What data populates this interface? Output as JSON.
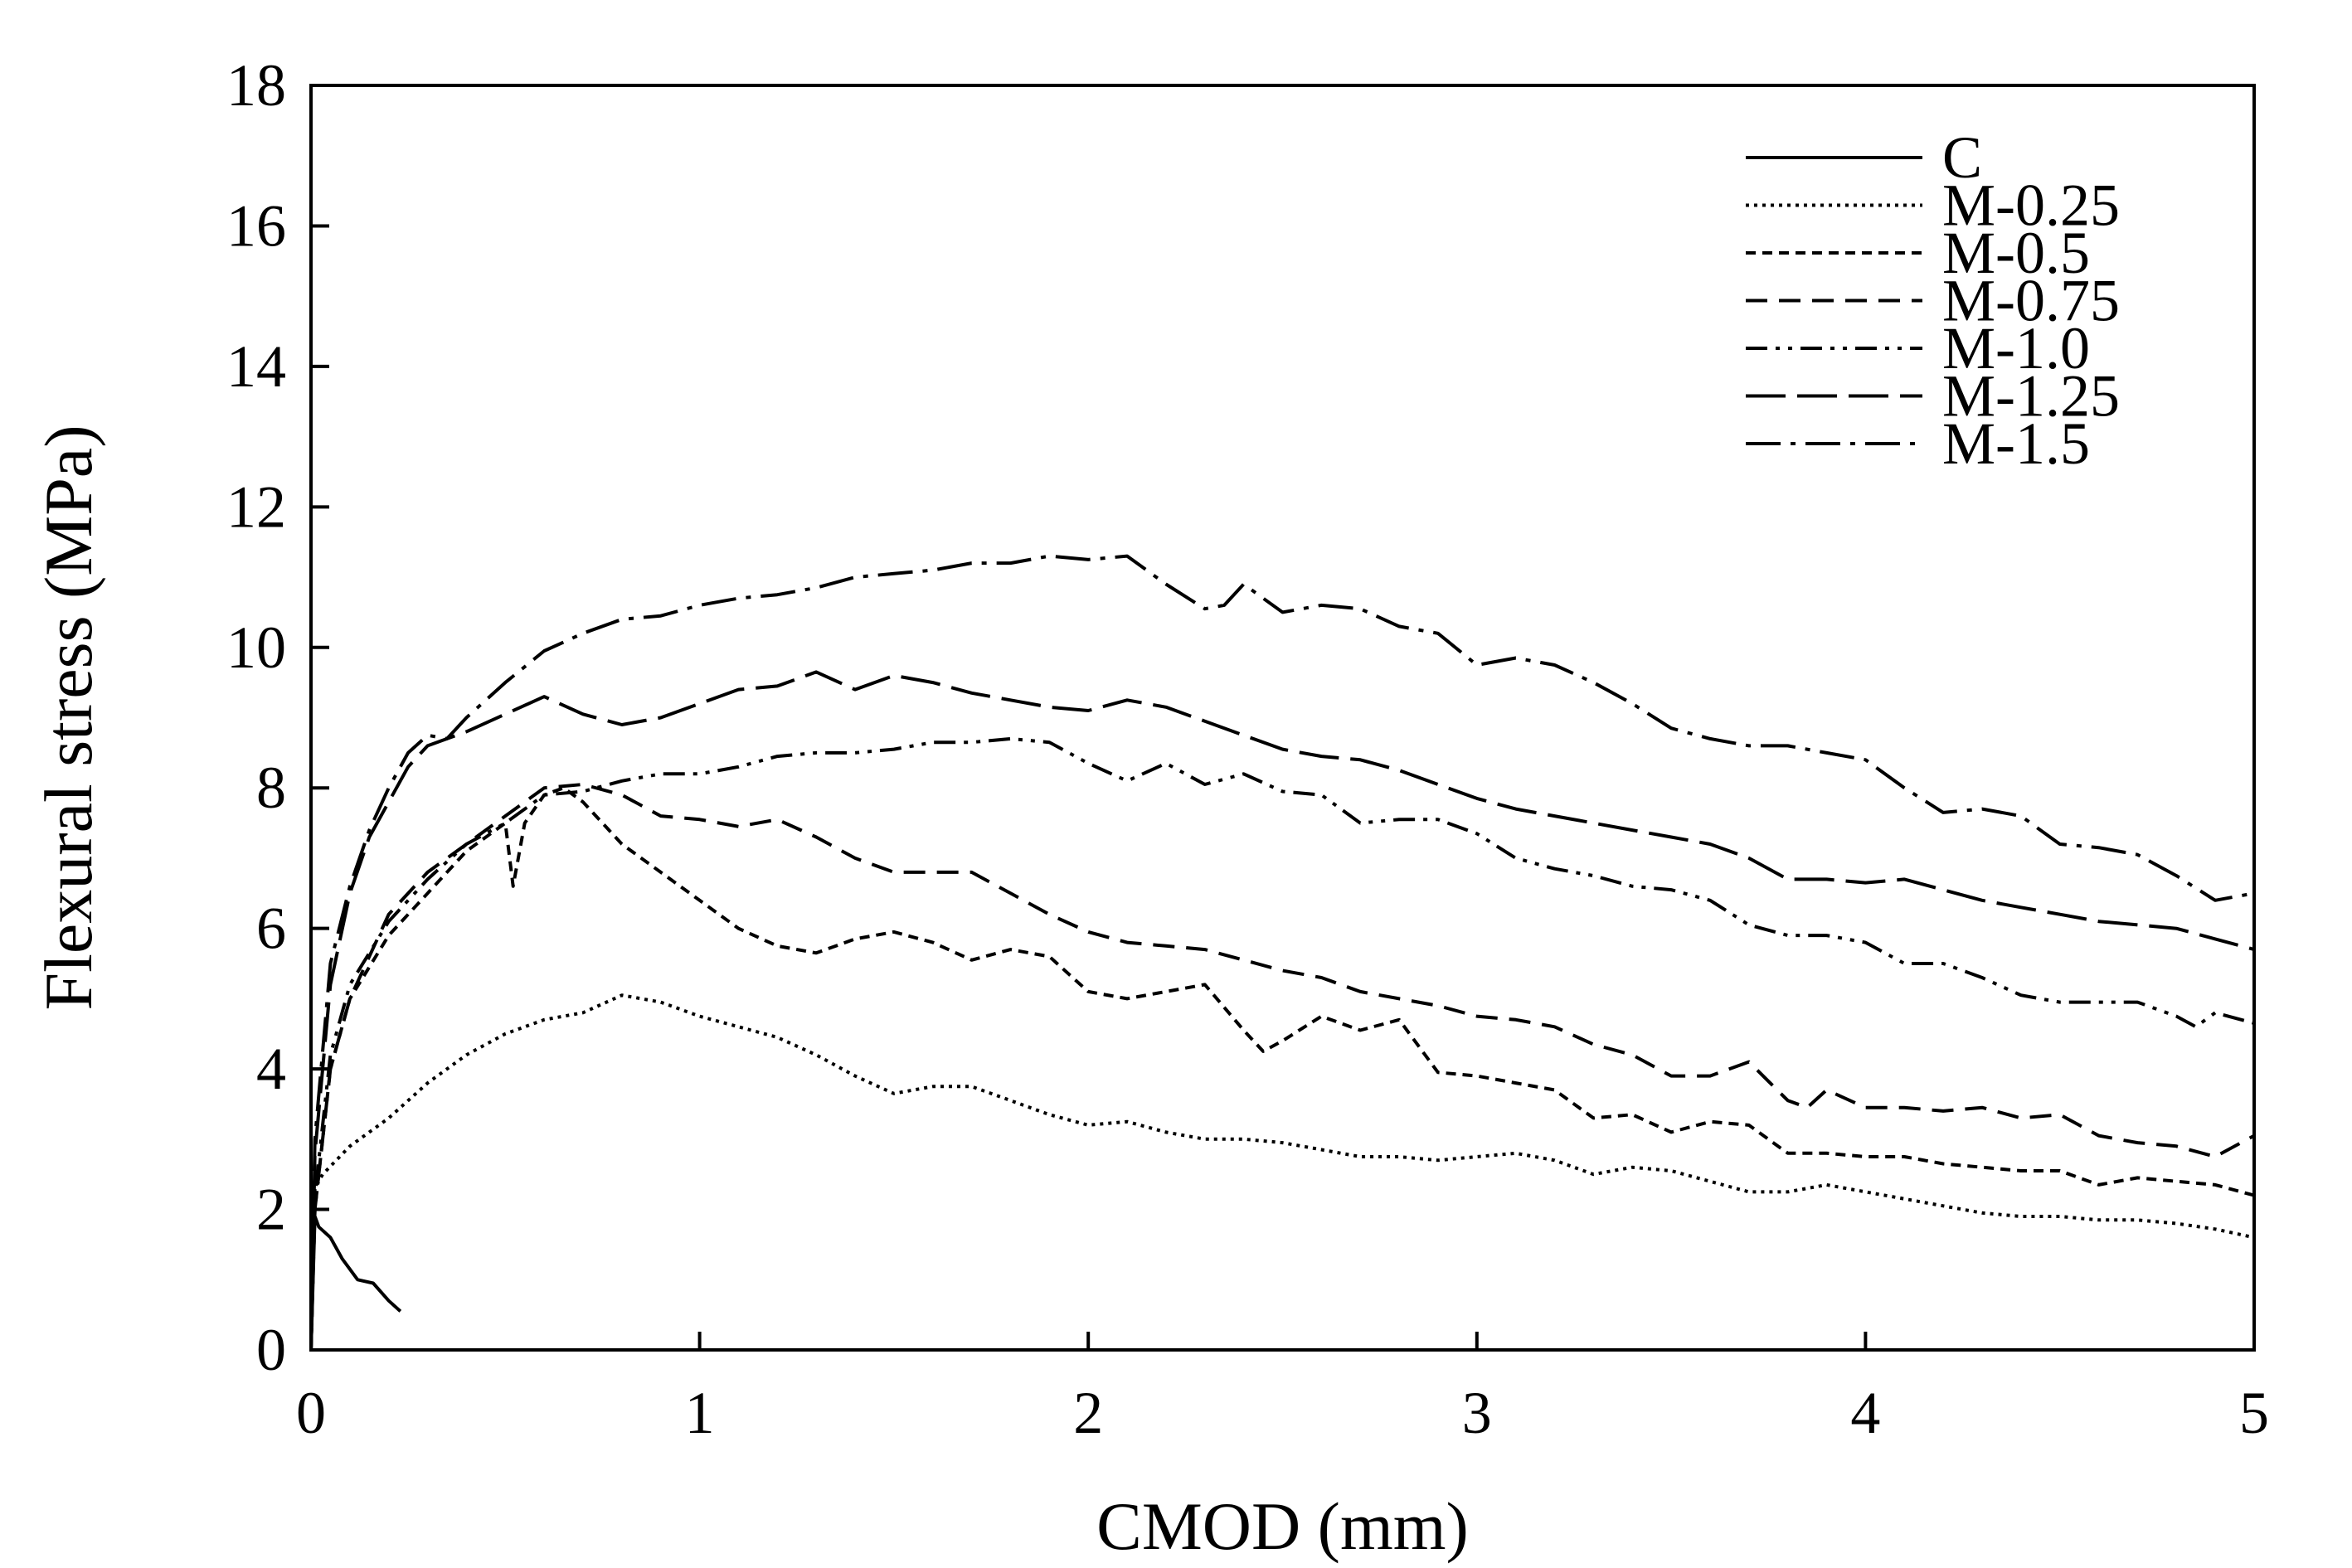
{
  "chart_data": {
    "type": "line",
    "title": "",
    "xlabel": "CMOD (mm)",
    "ylabel": "Flexural stress (MPa)",
    "xlim": [
      0,
      5
    ],
    "ylim": [
      0,
      18
    ],
    "xticks": [
      "0",
      "1",
      "2",
      "3",
      "4",
      "5"
    ],
    "yticks": [
      "0",
      "2",
      "4",
      "6",
      "8",
      "10",
      "12",
      "14",
      "16",
      "18"
    ],
    "grid": false,
    "legend_position": "top-right",
    "color": "#000000",
    "series": [
      {
        "name": "C",
        "dash": "solid",
        "x": [
          0,
          0.01,
          0.02,
          0.05,
          0.08,
          0.12,
          0.16,
          0.2,
          0.23
        ],
        "y": [
          0,
          1.9,
          1.75,
          1.6,
          1.3,
          1.0,
          0.95,
          0.7,
          0.55
        ]
      },
      {
        "name": "M-0.25",
        "dash": "dotted",
        "x": [
          0,
          0.01,
          0.03,
          0.1,
          0.2,
          0.3,
          0.4,
          0.5,
          0.6,
          0.7,
          0.8,
          0.9,
          1.0,
          1.1,
          1.2,
          1.3,
          1.4,
          1.5,
          1.6,
          1.7,
          1.8,
          1.9,
          2.0,
          2.1,
          2.2,
          2.3,
          2.4,
          2.5,
          2.6,
          2.7,
          2.8,
          2.9,
          3.0,
          3.1,
          3.2,
          3.3,
          3.4,
          3.5,
          3.6,
          3.7,
          3.8,
          3.9,
          4.0,
          4.1,
          4.2,
          4.3,
          4.4,
          4.5,
          4.6,
          4.7,
          4.8,
          4.9,
          5.0
        ],
        "y": [
          0,
          2.3,
          2.5,
          2.9,
          3.3,
          3.8,
          4.2,
          4.5,
          4.7,
          4.8,
          5.05,
          4.95,
          4.75,
          4.6,
          4.45,
          4.2,
          3.9,
          3.65,
          3.75,
          3.75,
          3.55,
          3.35,
          3.2,
          3.25,
          3.1,
          3.0,
          3.0,
          2.95,
          2.85,
          2.75,
          2.75,
          2.7,
          2.75,
          2.8,
          2.7,
          2.5,
          2.6,
          2.55,
          2.4,
          2.25,
          2.25,
          2.35,
          2.25,
          2.15,
          2.05,
          1.95,
          1.9,
          1.9,
          1.85,
          1.85,
          1.8,
          1.72,
          1.6
        ]
      },
      {
        "name": "M-0.5",
        "dash": "short-dash",
        "x": [
          0,
          0.01,
          0.05,
          0.1,
          0.2,
          0.3,
          0.4,
          0.5,
          0.52,
          0.55,
          0.6,
          0.65,
          0.7,
          0.8,
          0.9,
          1.0,
          1.1,
          1.2,
          1.3,
          1.4,
          1.5,
          1.6,
          1.7,
          1.8,
          1.9,
          2.0,
          2.1,
          2.2,
          2.3,
          2.4,
          2.45,
          2.5,
          2.6,
          2.7,
          2.8,
          2.9,
          3.0,
          3.1,
          3.2,
          3.3,
          3.4,
          3.5,
          3.6,
          3.7,
          3.8,
          3.9,
          4.0,
          4.1,
          4.2,
          4.3,
          4.4,
          4.5,
          4.6,
          4.7,
          4.8,
          4.9,
          5.0
        ],
        "y": [
          0,
          2.0,
          4.0,
          5.0,
          5.9,
          6.5,
          7.1,
          7.5,
          6.6,
          7.5,
          7.9,
          8.0,
          7.8,
          7.2,
          6.8,
          6.4,
          6.0,
          5.75,
          5.65,
          5.85,
          5.95,
          5.8,
          5.55,
          5.7,
          5.6,
          5.1,
          5.0,
          5.1,
          5.2,
          4.55,
          4.25,
          4.4,
          4.75,
          4.55,
          4.7,
          3.95,
          3.9,
          3.8,
          3.7,
          3.3,
          3.35,
          3.1,
          3.25,
          3.2,
          2.8,
          2.8,
          2.75,
          2.75,
          2.65,
          2.6,
          2.55,
          2.55,
          2.35,
          2.45,
          2.4,
          2.35,
          2.2
        ]
      },
      {
        "name": "M-0.75",
        "dash": "dash",
        "x": [
          0,
          0.01,
          0.05,
          0.1,
          0.2,
          0.3,
          0.4,
          0.5,
          0.6,
          0.7,
          0.8,
          0.9,
          1.0,
          1.1,
          1.2,
          1.3,
          1.4,
          1.5,
          1.6,
          1.7,
          1.8,
          1.9,
          2.0,
          2.1,
          2.2,
          2.3,
          2.4,
          2.5,
          2.6,
          2.7,
          2.8,
          2.9,
          3.0,
          3.1,
          3.2,
          3.3,
          3.4,
          3.5,
          3.6,
          3.7,
          3.8,
          3.85,
          3.9,
          4.0,
          4.1,
          4.2,
          4.3,
          4.4,
          4.5,
          4.6,
          4.7,
          4.8,
          4.9,
          5.0
        ],
        "y": [
          0,
          2.0,
          4.0,
          5.0,
          6.2,
          6.8,
          7.2,
          7.6,
          8.0,
          8.05,
          7.9,
          7.6,
          7.55,
          7.45,
          7.55,
          7.3,
          7.0,
          6.8,
          6.8,
          6.8,
          6.5,
          6.2,
          5.95,
          5.8,
          5.75,
          5.7,
          5.55,
          5.4,
          5.3,
          5.1,
          5.0,
          4.9,
          4.75,
          4.7,
          4.6,
          4.35,
          4.2,
          3.9,
          3.9,
          4.1,
          3.55,
          3.45,
          3.7,
          3.45,
          3.45,
          3.4,
          3.45,
          3.3,
          3.35,
          3.05,
          2.95,
          2.9,
          2.75,
          3.05
        ]
      },
      {
        "name": "M-1.0",
        "dash": "dash-dot-dot",
        "x": [
          0,
          0.01,
          0.05,
          0.1,
          0.2,
          0.3,
          0.4,
          0.5,
          0.6,
          0.7,
          0.8,
          0.9,
          1.0,
          1.1,
          1.2,
          1.3,
          1.4,
          1.5,
          1.6,
          1.7,
          1.8,
          1.9,
          2.0,
          2.1,
          2.2,
          2.3,
          2.4,
          2.5,
          2.6,
          2.7,
          2.8,
          2.9,
          3.0,
          3.1,
          3.2,
          3.3,
          3.4,
          3.5,
          3.6,
          3.7,
          3.8,
          3.9,
          4.0,
          4.1,
          4.2,
          4.3,
          4.4,
          4.5,
          4.6,
          4.7,
          4.8,
          4.85,
          4.9,
          5.0
        ],
        "y": [
          0,
          2.2,
          4.2,
          5.2,
          6.1,
          6.7,
          7.2,
          7.5,
          7.9,
          7.95,
          8.1,
          8.2,
          8.2,
          8.3,
          8.45,
          8.5,
          8.5,
          8.55,
          8.65,
          8.65,
          8.7,
          8.65,
          8.35,
          8.1,
          8.35,
          8.05,
          8.2,
          7.95,
          7.9,
          7.5,
          7.55,
          7.55,
          7.35,
          7.0,
          6.85,
          6.75,
          6.6,
          6.55,
          6.4,
          6.05,
          5.9,
          5.9,
          5.8,
          5.5,
          5.5,
          5.3,
          5.05,
          4.95,
          4.95,
          4.95,
          4.75,
          4.6,
          4.8,
          4.65
        ]
      },
      {
        "name": "M-1.25",
        "dash": "long-dash",
        "x": [
          0,
          0.01,
          0.05,
          0.1,
          0.15,
          0.2,
          0.25,
          0.3,
          0.4,
          0.5,
          0.6,
          0.7,
          0.8,
          0.9,
          1.0,
          1.1,
          1.2,
          1.3,
          1.4,
          1.5,
          1.6,
          1.7,
          1.8,
          1.9,
          2.0,
          2.1,
          2.2,
          2.3,
          2.4,
          2.5,
          2.6,
          2.7,
          2.8,
          2.9,
          3.0,
          3.1,
          3.2,
          3.3,
          3.4,
          3.5,
          3.6,
          3.7,
          3.8,
          3.9,
          4.0,
          4.1,
          4.2,
          4.3,
          4.4,
          4.5,
          4.6,
          4.7,
          4.8,
          4.9,
          5.0
        ],
        "y": [
          0,
          2.8,
          5.2,
          6.5,
          7.3,
          7.8,
          8.3,
          8.6,
          8.8,
          9.05,
          9.3,
          9.05,
          8.9,
          9.0,
          9.2,
          9.4,
          9.45,
          9.65,
          9.4,
          9.6,
          9.5,
          9.35,
          9.25,
          9.15,
          9.1,
          9.25,
          9.15,
          8.95,
          8.75,
          8.55,
          8.45,
          8.4,
          8.25,
          8.05,
          7.85,
          7.7,
          7.6,
          7.5,
          7.4,
          7.3,
          7.2,
          7.0,
          6.7,
          6.7,
          6.65,
          6.7,
          6.55,
          6.4,
          6.3,
          6.2,
          6.1,
          6.05,
          6.0,
          5.85,
          5.7
        ]
      },
      {
        "name": "M-1.5",
        "dash": "dash-dot",
        "x": [
          0,
          0.01,
          0.05,
          0.1,
          0.15,
          0.2,
          0.25,
          0.3,
          0.35,
          0.4,
          0.5,
          0.6,
          0.7,
          0.8,
          0.9,
          1.0,
          1.1,
          1.2,
          1.3,
          1.4,
          1.5,
          1.6,
          1.7,
          1.8,
          1.9,
          2.0,
          2.1,
          2.2,
          2.3,
          2.35,
          2.4,
          2.5,
          2.6,
          2.7,
          2.8,
          2.9,
          3.0,
          3.1,
          3.2,
          3.3,
          3.4,
          3.5,
          3.6,
          3.7,
          3.8,
          3.9,
          4.0,
          4.1,
          4.2,
          4.3,
          4.4,
          4.5,
          4.6,
          4.7,
          4.8,
          4.9,
          5.0
        ],
        "y": [
          0,
          3.0,
          5.5,
          6.6,
          7.4,
          8.0,
          8.5,
          8.75,
          8.7,
          9.0,
          9.5,
          9.95,
          10.2,
          10.4,
          10.45,
          10.6,
          10.7,
          10.75,
          10.85,
          11.0,
          11.05,
          11.1,
          11.2,
          11.2,
          11.3,
          11.25,
          11.3,
          10.9,
          10.55,
          10.6,
          10.9,
          10.5,
          10.6,
          10.55,
          10.3,
          10.2,
          9.75,
          9.85,
          9.75,
          9.5,
          9.2,
          8.85,
          8.7,
          8.6,
          8.6,
          8.5,
          8.4,
          8.0,
          7.65,
          7.7,
          7.6,
          7.2,
          7.15,
          7.05,
          6.75,
          6.4,
          6.5
        ]
      }
    ]
  }
}
